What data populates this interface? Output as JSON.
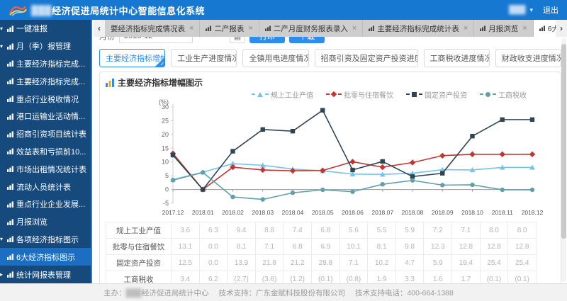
{
  "header": {
    "org_redacted": "███",
    "title": "经济促进局统计中心智能信息化系统",
    "user_redacted": "███",
    "user_caret": "▾",
    "logout": "退出"
  },
  "sidebar": {
    "items": [
      {
        "label": "一键准报",
        "level": 1,
        "expanded": true
      },
      {
        "label": "月（季）报管理",
        "level": 2,
        "expanded": true
      },
      {
        "label": "主要经济指标完成...",
        "level": 3
      },
      {
        "label": "主要经济指标完成...",
        "level": 3
      },
      {
        "label": "重点行业税收情况",
        "level": 3
      },
      {
        "label": "港口运输业活动情...",
        "level": 3
      },
      {
        "label": "招商引资项目统计表",
        "level": 3
      },
      {
        "label": "效益表和亏损前10...",
        "level": 3
      },
      {
        "label": "市场出租情况统计表",
        "level": 3
      },
      {
        "label": "流动人员统计表",
        "level": 3
      },
      {
        "label": "重点行业企业发展...",
        "level": 3
      },
      {
        "label": "月报浏览",
        "level": 3
      },
      {
        "label": "各项经济指标图示",
        "level": 2,
        "expanded": true
      },
      {
        "label": "6大经济指标图示",
        "level": 3,
        "active": true
      },
      {
        "label": "统计网报表管理",
        "level": 2,
        "collapsed": true
      }
    ]
  },
  "tab_bar": {
    "scroll_left": "‹",
    "scroll_right": "›",
    "close_glyph": "×",
    "tabs": [
      {
        "label": "要经济指标完成情况表",
        "noicon": true
      },
      {
        "label": "二产报表"
      },
      {
        "label": "二产月度财务报表录入"
      },
      {
        "label": "主要经济指标完成统计表"
      },
      {
        "label": "月报浏览"
      },
      {
        "label": "6大经济指标图示",
        "active": true
      }
    ]
  },
  "filter": {
    "month_label": "月份",
    "month_value": "2018-12",
    "calendar_glyph": "▦",
    "print": "打印",
    "download": "下载"
  },
  "views": [
    {
      "label": "主要经济指标增幅图示",
      "active": true
    },
    {
      "label": "工业生产进度情况图示"
    },
    {
      "label": "全镇用电进度情况图示"
    },
    {
      "label": "招商引资及固定资产投资进度情况图示"
    },
    {
      "label": "工商税收进度情况图示"
    },
    {
      "label": "财政收支进度情况图示"
    }
  ],
  "panel": {
    "title": "主要经济指标增幅图示"
  },
  "chart_data": {
    "type": "line",
    "title": "主要经济指标增幅图示",
    "unit_label": "(%)",
    "ylim": [
      -5,
      30
    ],
    "y_ticks": [
      30,
      25,
      20,
      15,
      10,
      5,
      0,
      -5
    ],
    "grid": false,
    "legend_position": "top-right",
    "negative_format": "parentheses",
    "categories": [
      "2017.12",
      "2018.01",
      "2018.02",
      "2018.03",
      "2018.04",
      "2018.05",
      "2018.06",
      "2018.07",
      "2018.08",
      "2018.09",
      "2018.10",
      "2018.11",
      "2018.12"
    ],
    "series": [
      {
        "name": "规上工业产值",
        "color": "#74c4e8",
        "marker": "triangle",
        "values": [
          3.6,
          6.3,
          9.4,
          8.8,
          7.4,
          6.8,
          5.6,
          5.5,
          5.9,
          7.2,
          7.1,
          8.0,
          8.0
        ]
      },
      {
        "name": "批零与住宿餐饮",
        "color": "#c23531",
        "marker": "diamond",
        "values": [
          13.1,
          0.0,
          8.1,
          7.1,
          6.8,
          6.9,
          10.1,
          8.1,
          9.8,
          12.3,
          12.8,
          12.8,
          12.8
        ]
      },
      {
        "name": "固定资产投资",
        "color": "#2f4554",
        "marker": "square",
        "values": [
          12.5,
          0.0,
          13.9,
          21.8,
          21.2,
          28.8,
          7.1,
          10.2,
          4.7,
          5.9,
          19.4,
          25.4,
          25.4
        ]
      },
      {
        "name": "工商税收",
        "color": "#61a0a8",
        "marker": "circle",
        "values": [
          3.4,
          6.2,
          -2.7,
          -3.6,
          -1.2,
          -0.1,
          -0.8,
          1.9,
          3.3,
          1.6,
          1.7,
          -0.1,
          -0.1
        ]
      }
    ]
  },
  "footer": {
    "host_label": "主办：",
    "host_redacted": "███",
    "host_rest": "经济促进局统计中心",
    "support": "技术支持：广东金赋科技股份有限公司",
    "phone": "技术支持电话：400-664-1388"
  }
}
